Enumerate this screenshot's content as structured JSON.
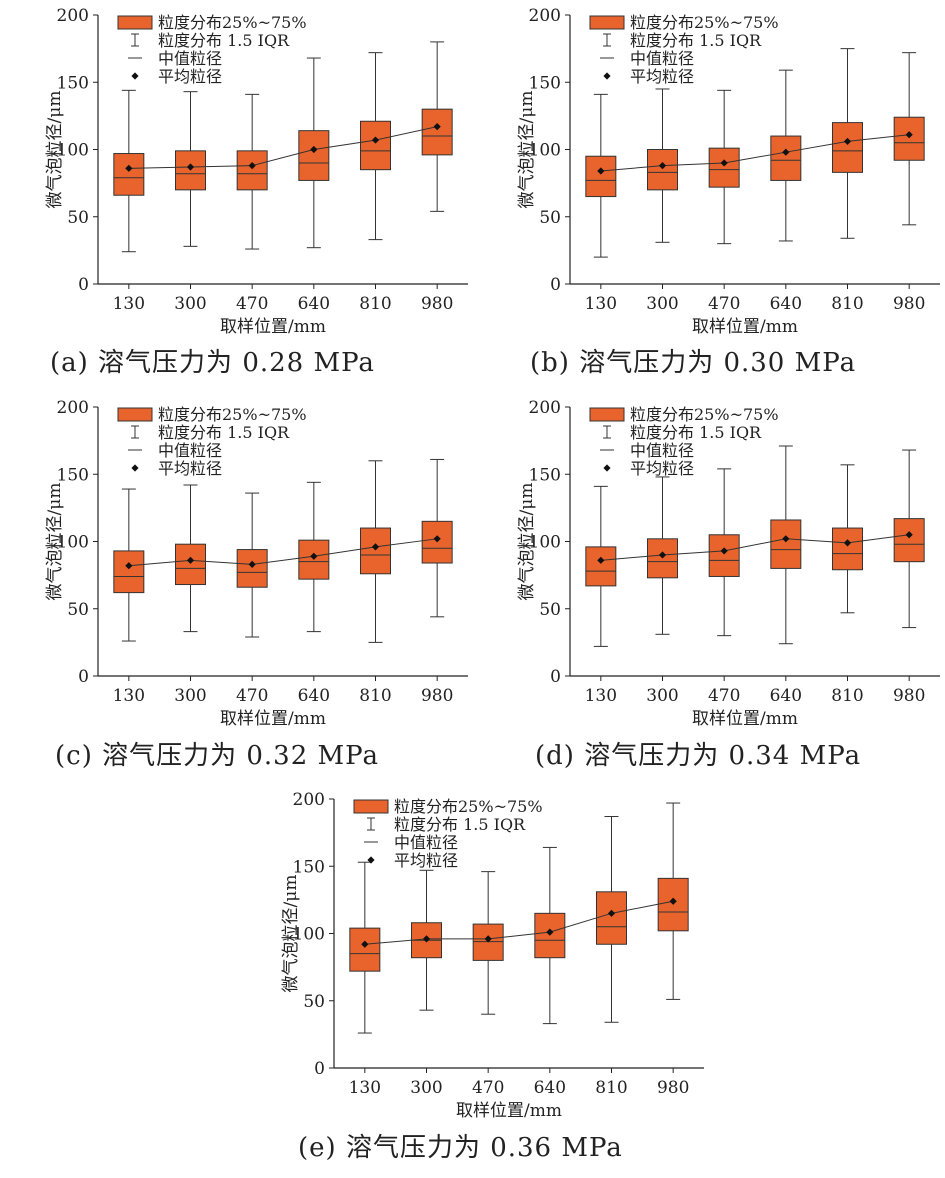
{
  "style": {
    "box_fill": "#e8642c",
    "box_stroke": "#333333",
    "axis_color": "#222222",
    "mean_color": "#111111"
  },
  "chart_data": [
    {
      "type": "box",
      "caption": "(a) 溶气压力为 0.28 MPa",
      "xlabel": "取样位置/mm",
      "ylabel": "微气泡粒径/μm",
      "ylim": [
        0,
        200
      ],
      "yticks": [
        "0",
        "50",
        "100",
        "150",
        "200"
      ],
      "categories": [
        "130",
        "300",
        "470",
        "640",
        "810",
        "980"
      ],
      "legend": [
        "粒度分布25%~75%",
        "粒度分布 1.5 IQR",
        "中值粒径",
        "平均粒径"
      ],
      "legend_position": "top-left",
      "min": [
        24,
        28,
        26,
        27,
        33,
        54
      ],
      "q1": [
        66,
        70,
        70,
        77,
        85,
        96
      ],
      "median": [
        79,
        82,
        82,
        90,
        99,
        110
      ],
      "q3": [
        97,
        99,
        99,
        114,
        121,
        130
      ],
      "max": [
        144,
        143,
        141,
        168,
        172,
        180
      ],
      "mean": [
        86,
        87,
        88,
        100,
        107,
        117
      ]
    },
    {
      "type": "box",
      "caption": "(b) 溶气压力为 0.30 MPa",
      "xlabel": "取样位置/mm",
      "ylabel": "微气泡粒径/μm",
      "ylim": [
        0,
        200
      ],
      "yticks": [
        "0",
        "50",
        "100",
        "150",
        "200"
      ],
      "categories": [
        "130",
        "300",
        "470",
        "640",
        "810",
        "980"
      ],
      "legend": [
        "粒度分布25%~75%",
        "粒度分布 1.5 IQR",
        "中值粒径",
        "平均粒径"
      ],
      "legend_position": "top-left",
      "min": [
        20,
        31,
        30,
        32,
        34,
        44
      ],
      "q1": [
        65,
        70,
        72,
        77,
        83,
        92
      ],
      "median": [
        77,
        83,
        85,
        92,
        99,
        105
      ],
      "q3": [
        95,
        100,
        101,
        110,
        120,
        124
      ],
      "max": [
        141,
        145,
        144,
        159,
        175,
        172
      ],
      "mean": [
        84,
        88,
        90,
        98,
        106,
        111
      ]
    },
    {
      "type": "box",
      "caption": "(c) 溶气压力为 0.32 MPa",
      "xlabel": "取样位置/mm",
      "ylabel": "微气泡粒径/μm",
      "ylim": [
        0,
        200
      ],
      "yticks": [
        "0",
        "50",
        "100",
        "150",
        "200"
      ],
      "categories": [
        "130",
        "300",
        "470",
        "640",
        "810",
        "980"
      ],
      "legend": [
        "粒度分布25%~75%",
        "粒度分布 1.5 IQR",
        "中值粒径",
        "平均粒径"
      ],
      "legend_position": "top-left",
      "min": [
        26,
        33,
        29,
        33,
        25,
        44
      ],
      "q1": [
        62,
        68,
        66,
        72,
        76,
        84
      ],
      "median": [
        74,
        80,
        77,
        85,
        90,
        95
      ],
      "q3": [
        93,
        98,
        94,
        101,
        110,
        115
      ],
      "max": [
        139,
        142,
        136,
        144,
        160,
        161
      ],
      "mean": [
        82,
        86,
        83,
        89,
        96,
        102
      ]
    },
    {
      "type": "box",
      "caption": "(d) 溶气压力为 0.34 MPa",
      "xlabel": "取样位置/mm",
      "ylabel": "微气泡粒径/μm",
      "ylim": [
        0,
        200
      ],
      "yticks": [
        "0",
        "50",
        "100",
        "150",
        "200"
      ],
      "categories": [
        "130",
        "300",
        "470",
        "640",
        "810",
        "980"
      ],
      "legend": [
        "粒度分布25%~75%",
        "粒度分布 1.5 IQR",
        "中值粒径",
        "平均粒径"
      ],
      "legend_position": "top-left",
      "min": [
        22,
        31,
        30,
        24,
        47,
        36
      ],
      "q1": [
        67,
        73,
        74,
        80,
        79,
        85
      ],
      "median": [
        78,
        85,
        86,
        94,
        91,
        98
      ],
      "q3": [
        96,
        102,
        105,
        116,
        110,
        117
      ],
      "max": [
        141,
        148,
        154,
        171,
        157,
        168
      ],
      "mean": [
        86,
        90,
        93,
        102,
        99,
        105
      ]
    },
    {
      "type": "box",
      "caption": "(e) 溶气压力为 0.36 MPa",
      "xlabel": "取样位置/mm",
      "ylabel": "微气泡粒径/μm",
      "ylim": [
        0,
        200
      ],
      "yticks": [
        "0",
        "50",
        "100",
        "150",
        "200"
      ],
      "categories": [
        "130",
        "300",
        "470",
        "640",
        "810",
        "980"
      ],
      "legend": [
        "粒度分布25%~75%",
        "粒度分布 1.5 IQR",
        "中值粒径",
        "平均粒径"
      ],
      "legend_position": "top-left",
      "min": [
        26,
        43,
        40,
        33,
        34,
        51
      ],
      "q1": [
        72,
        82,
        80,
        82,
        92,
        102
      ],
      "median": [
        85,
        95,
        94,
        95,
        105,
        116
      ],
      "q3": [
        104,
        108,
        107,
        115,
        131,
        141
      ],
      "max": [
        153,
        147,
        146,
        164,
        187,
        197
      ],
      "mean": [
        92,
        96,
        96,
        101,
        115,
        124
      ]
    }
  ]
}
